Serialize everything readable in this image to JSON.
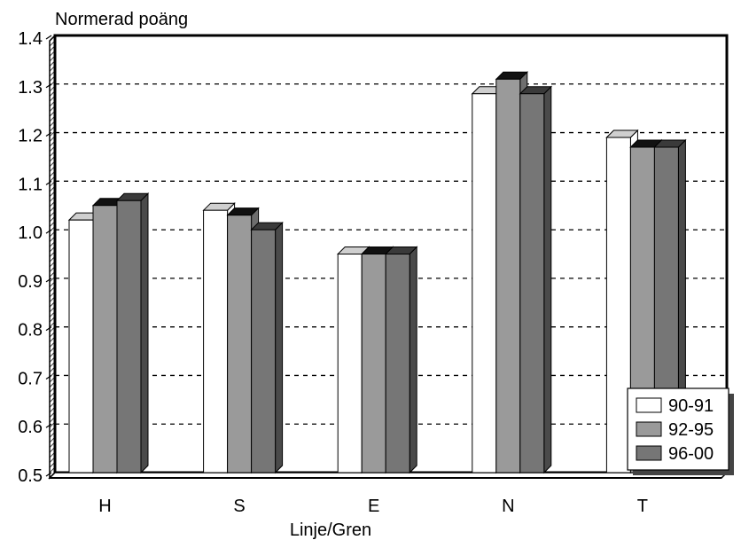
{
  "chart_data": {
    "type": "bar",
    "title": "",
    "ylabel": "Normerad poäng",
    "xlabel": "Linje/Gren",
    "categories": [
      "H",
      "S",
      "E",
      "N",
      "T"
    ],
    "series": [
      {
        "name": "90-91",
        "values": [
          1.02,
          1.04,
          0.95,
          1.28,
          1.19
        ],
        "color": "#ffffff"
      },
      {
        "name": "92-95",
        "values": [
          1.05,
          1.03,
          0.95,
          1.31,
          1.17
        ],
        "color": "#9a9a9a"
      },
      {
        "name": "96-00",
        "values": [
          1.06,
          1.0,
          0.95,
          1.28,
          1.17
        ],
        "color": "#767676"
      }
    ],
    "ylim": [
      0.5,
      1.4
    ],
    "yticks": [
      "0.5",
      "0.6",
      "0.7",
      "0.8",
      "0.9",
      "1.0",
      "1.1",
      "1.2",
      "1.3",
      "1.4"
    ],
    "grid": true,
    "legend_position": "bottom-right",
    "style": "3d-bars"
  }
}
